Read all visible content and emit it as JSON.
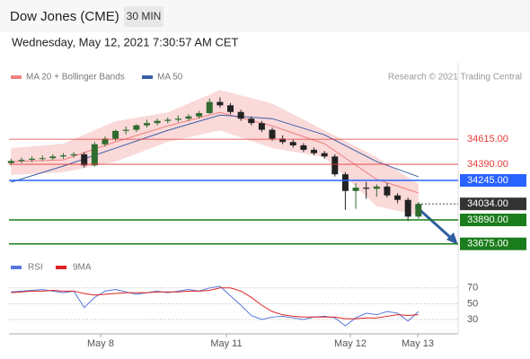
{
  "header": {
    "title": "Dow Jones (CME)",
    "interval": "30 MIN",
    "timestamp": "Wednesday, May 12, 2021 7:30:57 AM CET",
    "source": "Research © 2021 Trading Central"
  },
  "chart_data": [
    {
      "type": "candlestick",
      "xlim": [
        -0.2,
        42.8
      ],
      "ylim": [
        33600,
        35100
      ],
      "up_color": "#2f6b2f",
      "down_color": "#222222",
      "open": [
        34400,
        34420,
        34430,
        34440,
        34445,
        34460,
        34470,
        34480,
        34380,
        34570,
        34620,
        34690,
        34700,
        34740,
        34760,
        34780,
        34790,
        34800,
        34820,
        34850,
        34950,
        34920,
        34860,
        34800,
        34760,
        34700,
        34620,
        34590,
        34560,
        34520,
        34490,
        34460,
        34300,
        34150,
        34180,
        34170,
        34190,
        34110,
        34070,
        33920
      ],
      "high": [
        34440,
        34450,
        34460,
        34470,
        34480,
        34490,
        34500,
        34500,
        34590,
        34640,
        34700,
        34730,
        34750,
        34790,
        34800,
        34810,
        34830,
        34840,
        34870,
        34980,
        34990,
        34940,
        34880,
        34820,
        34780,
        34720,
        34650,
        34610,
        34580,
        34540,
        34510,
        34480,
        34320,
        34220,
        34230,
        34210,
        34220,
        34130,
        34090,
        34050
      ],
      "low": [
        34380,
        34400,
        34410,
        34420,
        34430,
        34440,
        34450,
        34360,
        34370,
        34550,
        34600,
        34660,
        34680,
        34720,
        34740,
        34760,
        34770,
        34780,
        34800,
        34840,
        34900,
        34840,
        34780,
        34740,
        34680,
        34600,
        34570,
        34540,
        34500,
        34470,
        34440,
        34280,
        33980,
        33990,
        34080,
        34100,
        34090,
        34040,
        33880,
        33900
      ],
      "close": [
        34420,
        34430,
        34440,
        34445,
        34460,
        34470,
        34480,
        34380,
        34570,
        34620,
        34690,
        34700,
        34740,
        34760,
        34780,
        34790,
        34800,
        34820,
        34850,
        34950,
        34920,
        34860,
        34800,
        34760,
        34700,
        34620,
        34590,
        34560,
        34520,
        34490,
        34460,
        34300,
        34150,
        34180,
        34170,
        34190,
        34110,
        34070,
        33920,
        34034
      ],
      "series": [
        {
          "name": "MA 20 + Bollinger Bands",
          "color": "#f08080",
          "x": [
            0,
            5,
            10,
            15,
            20,
            25,
            30,
            35,
            39
          ],
          "values": [
            34414,
            34430,
            34591,
            34735,
            34856,
            34735,
            34575,
            34254,
            34133
          ],
          "upper": [
            34535,
            34575,
            34776,
            34856,
            35057,
            34936,
            34695,
            34454,
            34213
          ],
          "lower": [
            34294,
            34318,
            34414,
            34591,
            34695,
            34535,
            34454,
            34013,
            33932
          ]
        },
        {
          "name": "MA 50",
          "color": "#3a5fa8",
          "x": [
            0,
            5,
            10,
            15,
            20,
            25,
            30,
            35,
            39
          ],
          "values": [
            34229,
            34374,
            34535,
            34695,
            34832,
            34800,
            34655,
            34414,
            34278
          ]
        }
      ],
      "levels": [
        {
          "value": 34615,
          "label": "34615.00",
          "color": "#e53935",
          "filled": false,
          "dotted": false
        },
        {
          "value": 34390,
          "label": "34390.00",
          "color": "#e53935",
          "filled": false,
          "dotted": false
        },
        {
          "value": 34245,
          "label": "34245.00",
          "color": "#2962ff",
          "filled": true,
          "dotted": false
        },
        {
          "value": 34034,
          "label": "34034.00",
          "color": "#333333",
          "filled": true,
          "dotted": true
        },
        {
          "value": 33890,
          "label": "33890.00",
          "color": "#1b7d1b",
          "filled": true,
          "dotted": false
        },
        {
          "value": 33675,
          "label": "33675.00",
          "color": "#1b7d1b",
          "filled": true,
          "dotted": false
        }
      ]
    },
    {
      "type": "line",
      "xlim": [
        -0.2,
        42.8
      ],
      "ylim": [
        14,
        88
      ],
      "yticks": [
        30,
        50,
        70
      ],
      "xticks": [
        {
          "value": 8.57,
          "label": "May 8"
        },
        {
          "value": 20.61,
          "label": "May 11"
        },
        {
          "value": 32.48,
          "label": "May 12"
        },
        {
          "value": 38.93,
          "label": "May 13"
        }
      ],
      "series": [
        {
          "name": "RSI",
          "color": "#5577dd",
          "values": [
            65,
            66,
            67,
            68,
            66,
            64,
            66,
            45,
            58,
            66,
            68,
            65,
            62,
            64,
            66,
            64,
            66,
            68,
            66,
            70,
            72,
            60,
            48,
            35,
            30,
            33,
            34,
            32,
            30,
            33,
            34,
            32,
            22,
            32,
            38,
            36,
            40,
            38,
            28,
            40
          ]
        },
        {
          "name": "9MA",
          "color": "#dd2222",
          "values": [
            64,
            65,
            66,
            66,
            67,
            66,
            66,
            63,
            61,
            62,
            63,
            64,
            64,
            64,
            65,
            65,
            65,
            66,
            66,
            67,
            70,
            70,
            66,
            58,
            48,
            40,
            36,
            34,
            33,
            33,
            33,
            33,
            31,
            31,
            32,
            32,
            34,
            36,
            35,
            36
          ]
        }
      ]
    }
  ]
}
